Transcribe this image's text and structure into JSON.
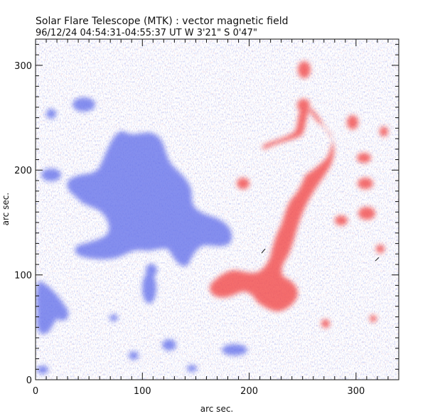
{
  "title": "Solar Flare Telescope (MTK) : vector magnetic field",
  "subtitle": "96/12/24  04:54:31-04:55:37 UT     W 3'21\"   S 0'47\"",
  "xlabel": "arc sec.",
  "ylabel": "arc sec.",
  "x_ticks": [
    "0",
    "100",
    "200",
    "300"
  ],
  "y_ticks": [
    "0",
    "100",
    "200",
    "300"
  ],
  "x_tick_values": [
    0,
    100,
    200,
    300
  ],
  "y_tick_values": [
    0,
    100,
    200,
    300
  ],
  "xlim": [
    0,
    340
  ],
  "ylim": [
    0,
    325
  ],
  "colors": {
    "negative_polarity": "#5a66e6",
    "positive_polarity": "#f04848",
    "background": "#ffffff",
    "axes": "#111111"
  }
}
